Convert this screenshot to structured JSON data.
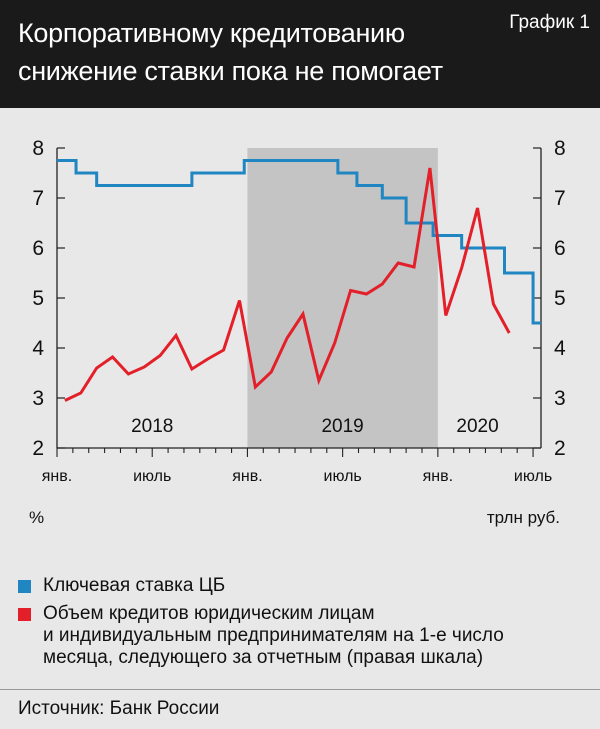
{
  "header": {
    "title": "Корпоративному кредитованию\nснижение ставки пока не помогает",
    "graph_label": "График 1"
  },
  "legend": [
    {
      "label": "Ключевая ставка ЦБ",
      "color": "#1f86c2"
    },
    {
      "label": "Объем кредитов юридическим лицам\nи индивидуальным предпринимателям на 1-е число\nмесяца, следующего за отчетным (правая шкала)",
      "color": "#e3202a"
    }
  ],
  "source": "Источник: Банк России",
  "chart_data": {
    "type": "line",
    "left_unit": "%",
    "right_unit": "трлн руб.",
    "ylim": [
      2,
      8
    ],
    "yticks": [
      2,
      3,
      4,
      5,
      6,
      7,
      8
    ],
    "xlim": [
      0,
      30.5
    ],
    "xtick_labels": [
      {
        "x": 0,
        "label": "янв."
      },
      {
        "x": 6,
        "label": "июль"
      },
      {
        "x": 12,
        "label": "янв."
      },
      {
        "x": 18,
        "label": "июль"
      },
      {
        "x": 24,
        "label": "янв."
      },
      {
        "x": 30,
        "label": "июль"
      }
    ],
    "year_labels": [
      {
        "x": 6,
        "label": "2018"
      },
      {
        "x": 18,
        "label": "2019"
      },
      {
        "x": 26.5,
        "label": "2020"
      }
    ],
    "shaded_period": [
      12,
      24
    ],
    "grid": false,
    "series": [
      {
        "name": "Ключевая ставка ЦБ",
        "color": "#1f86c2",
        "step": true,
        "points": [
          [
            0,
            7.75
          ],
          [
            1.2,
            7.5
          ],
          [
            2.5,
            7.25
          ],
          [
            8.5,
            7.5
          ],
          [
            11.8,
            7.75
          ],
          [
            17.7,
            7.5
          ],
          [
            18.9,
            7.25
          ],
          [
            20.5,
            7.0
          ],
          [
            22,
            6.5
          ],
          [
            23.7,
            6.25
          ],
          [
            25.5,
            6.0
          ],
          [
            28.2,
            5.5
          ],
          [
            30,
            4.5
          ],
          [
            30.5,
            4.5
          ]
        ]
      },
      {
        "name": "Объем кредитов юридическим лицам и индивидуальным предпринимателям на 1-е число месяца, следующего за отчетным",
        "color": "#e3202a",
        "step": false,
        "points": [
          [
            0.5,
            2.95
          ],
          [
            1.5,
            3.1
          ],
          [
            2.5,
            3.6
          ],
          [
            3.5,
            3.82
          ],
          [
            4.5,
            3.48
          ],
          [
            5.5,
            3.62
          ],
          [
            6.5,
            3.85
          ],
          [
            7.5,
            4.25
          ],
          [
            8.5,
            3.58
          ],
          [
            9.5,
            3.78
          ],
          [
            10.5,
            3.96
          ],
          [
            11.5,
            4.95
          ],
          [
            12.5,
            3.22
          ],
          [
            13.5,
            3.52
          ],
          [
            14.5,
            4.2
          ],
          [
            15.5,
            4.68
          ],
          [
            16.5,
            3.35
          ],
          [
            17.5,
            4.1
          ],
          [
            18.5,
            5.15
          ],
          [
            19.5,
            5.08
          ],
          [
            20.5,
            5.28
          ],
          [
            21.5,
            5.7
          ],
          [
            22.5,
            5.62
          ],
          [
            23.5,
            7.6
          ],
          [
            24.5,
            4.65
          ],
          [
            25.5,
            5.6
          ],
          [
            26.5,
            6.8
          ],
          [
            27.5,
            4.88
          ],
          [
            28.5,
            4.3
          ]
        ]
      }
    ]
  }
}
